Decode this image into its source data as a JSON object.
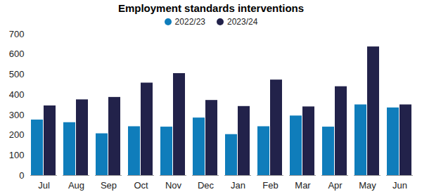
{
  "chart_data": {
    "type": "bar",
    "title": "Employment standards interventions",
    "categories": [
      "Jul",
      "Aug",
      "Sep",
      "Oct",
      "Nov",
      "Dec",
      "Jan",
      "Feb",
      "Mar",
      "Apr",
      "May",
      "Jun"
    ],
    "series": [
      {
        "name": "2022/23",
        "color": "#0f7dbb",
        "values": [
          275,
          262,
          207,
          242,
          240,
          285,
          203,
          242,
          295,
          240,
          350,
          335
        ]
      },
      {
        "name": "2023/24",
        "color": "#22224a",
        "values": [
          345,
          375,
          387,
          458,
          505,
          372,
          342,
          473,
          340,
          440,
          637,
          350
        ]
      }
    ],
    "ylim": [
      0,
      700
    ],
    "yticks": [
      0,
      100,
      200,
      300,
      400,
      500,
      600,
      700
    ],
    "grid": false,
    "legend": "top"
  }
}
